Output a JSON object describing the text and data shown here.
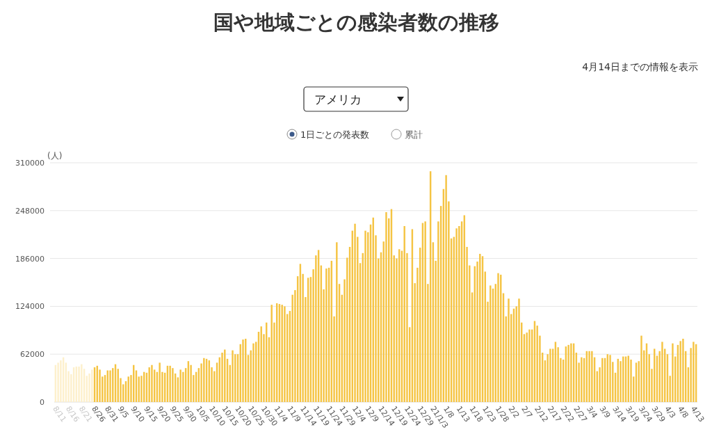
{
  "chart_data": {
    "type": "bar",
    "title": "国や地域ごとの感染者数の推移",
    "subtitle": "アメリカ",
    "ylabel": "(人)",
    "annotations": [
      "4月14日までの情報を表示",
      "1日ごとの発表数",
      "累計"
    ],
    "categories": [
      "8/11",
      null,
      null,
      null,
      null,
      "8/16",
      null,
      null,
      null,
      null,
      "8/21",
      null,
      null,
      null,
      null,
      "8/26",
      null,
      null,
      null,
      null,
      "8/31",
      null,
      null,
      null,
      null,
      "9/5",
      null,
      null,
      null,
      null,
      "9/10",
      null,
      null,
      null,
      null,
      "9/15",
      null,
      null,
      null,
      null,
      "9/20",
      null,
      null,
      null,
      null,
      "9/25",
      null,
      null,
      null,
      null,
      "9/30",
      null,
      null,
      null,
      null,
      "10/5",
      null,
      null,
      null,
      null,
      "10/10",
      null,
      null,
      null,
      null,
      "10/15",
      null,
      null,
      null,
      null,
      "10/20",
      null,
      null,
      null,
      null,
      "10/25",
      null,
      null,
      null,
      null,
      "10/30",
      null,
      null,
      null,
      null,
      "11/4",
      null,
      null,
      null,
      null,
      "11/9",
      null,
      null,
      null,
      null,
      "11/14",
      null,
      null,
      null,
      null,
      "11/19",
      null,
      null,
      null,
      null,
      "11/24",
      null,
      null,
      null,
      null,
      "11/29",
      null,
      null,
      null,
      null,
      "12/4",
      null,
      null,
      null,
      null,
      "12/9",
      null,
      null,
      null,
      null,
      "12/14",
      null,
      null,
      null,
      null,
      "12/19",
      null,
      null,
      null,
      null,
      "12/24",
      null,
      null,
      null,
      null,
      "12/29",
      null,
      null,
      null,
      null,
      "21/1/3",
      null,
      null,
      null,
      null,
      "1/8",
      null,
      null,
      null,
      null,
      "1/13",
      null,
      null,
      null,
      null,
      "1/18",
      null,
      null,
      null,
      null,
      "1/23",
      null,
      null,
      null,
      null,
      "1/28",
      null,
      null,
      null,
      null,
      "2/2",
      null,
      null,
      null,
      null,
      "2/7",
      null,
      null,
      null,
      null,
      "2/12",
      null,
      null,
      null,
      null,
      "2/17",
      null,
      null,
      null,
      null,
      "2/22",
      null,
      null,
      null,
      null,
      "2/27",
      null,
      null,
      null,
      null,
      "3/4",
      null,
      null,
      null,
      null,
      "3/9",
      null,
      null,
      null,
      null,
      "3/14",
      null,
      null,
      null,
      null,
      "3/19",
      null,
      null,
      null,
      null,
      "3/24",
      null,
      null,
      null,
      null,
      "3/29",
      null,
      null,
      null,
      null,
      "4/3",
      null,
      null,
      null,
      null,
      "4/8",
      null,
      null,
      null,
      null,
      "4/13",
      null
    ],
    "values": [
      48000,
      51000,
      54000,
      58000,
      51000,
      40000,
      36000,
      45000,
      46000,
      46000,
      49000,
      43000,
      34000,
      37000,
      42000,
      45000,
      47000,
      42000,
      33000,
      35000,
      41000,
      41000,
      44000,
      49000,
      43000,
      31000,
      23000,
      27000,
      33000,
      35000,
      48000,
      41000,
      33000,
      34000,
      39000,
      38000,
      45000,
      48000,
      42000,
      39000,
      51000,
      39000,
      38000,
      47000,
      47000,
      44000,
      37000,
      32000,
      42000,
      39000,
      44000,
      53000,
      48000,
      35000,
      39000,
      44000,
      50000,
      57000,
      56000,
      54000,
      45000,
      40000,
      51000,
      58000,
      64000,
      68000,
      56000,
      48000,
      67000,
      62000,
      62000,
      75000,
      81000,
      82000,
      61000,
      67000,
      76000,
      78000,
      91000,
      98000,
      88000,
      103000,
      84000,
      126000,
      103000,
      128000,
      127000,
      126000,
      124000,
      114000,
      118000,
      139000,
      145000,
      163000,
      179000,
      166000,
      136000,
      161000,
      162000,
      172000,
      190000,
      197000,
      177000,
      146000,
      173000,
      174000,
      183000,
      111000,
      207000,
      153000,
      139000,
      159000,
      187000,
      201000,
      222000,
      231000,
      214000,
      180000,
      193000,
      222000,
      220000,
      230000,
      239000,
      216000,
      186000,
      194000,
      208000,
      246000,
      238000,
      250000,
      190000,
      186000,
      198000,
      196000,
      228000,
      193000,
      97000,
      224000,
      154000,
      174000,
      200000,
      232000,
      234000,
      153000,
      299000,
      207000,
      183000,
      234000,
      254000,
      276000,
      294000,
      260000,
      212000,
      214000,
      225000,
      228000,
      234000,
      242000,
      201000,
      177000,
      142000,
      176000,
      182000,
      192000,
      189000,
      169000,
      130000,
      151000,
      147000,
      153000,
      167000,
      165000,
      141000,
      111000,
      134000,
      114000,
      121000,
      124000,
      134000,
      103000,
      88000,
      90000,
      94000,
      94000,
      105000,
      99000,
      86000,
      64000,
      54000,
      62000,
      69000,
      69000,
      78000,
      71000,
      57000,
      55000,
      72000,
      74000,
      76000,
      76000,
      64000,
      51000,
      58000,
      57000,
      66000,
      66000,
      66000,
      58000,
      40000,
      45000,
      57000,
      57000,
      62000,
      61000,
      52000,
      38000,
      56000,
      53000,
      59000,
      59000,
      60000,
      55000,
      33000,
      51000,
      53000,
      86000,
      67000,
      76000,
      62000,
      43000,
      69000,
      60000,
      66000,
      78000,
      69000,
      62000,
      34000,
      76000,
      59000,
      74000,
      79000,
      82000,
      66000,
      45000,
      70000,
      78000,
      75000
    ],
    "colors": [
      "#fdf0cc",
      "#fdf0cc",
      "#fdf0cc",
      "#fdf0cc",
      "#fdf0cc",
      "#fdf0cc",
      "#fdf0cc",
      "#fdf0cc",
      "#fdf0cc",
      "#fdf0cc",
      "#fdf0cc",
      "#fdf0cc",
      "#fdf0cc",
      "#fdf0cc",
      "#fdf0cc",
      "#f5c443",
      "#f5c443",
      "#f5c443",
      "#f5c443",
      "#f5c443",
      "#f5c443",
      "#f5c443",
      "#f5c443",
      "#f5c443",
      "#f5c443",
      "#f5c443",
      "#f5c443",
      "#f5c443",
      "#f5c443",
      "#f5c443",
      "#f5c443",
      "#f5c443",
      "#f5c443",
      "#f5c443",
      "#f5c443",
      "#f5c443",
      "#f5c443",
      "#f5c443",
      "#f5c443",
      "#f5c443",
      "#f5c443",
      "#f5c443",
      "#f5c443",
      "#f5c443",
      "#f5c443",
      "#f5c443",
      "#f5c443",
      "#f5c443",
      "#f5c443",
      "#f5c443",
      "#f5c443",
      "#f5c443",
      "#f5c443",
      "#f5c443",
      "#f5c443",
      "#f5c443",
      "#f5c443",
      "#f5c443",
      "#f5c443",
      "#f5c443",
      "#f5c443",
      "#f5c443",
      "#f5c443",
      "#f5c443",
      "#f5c443",
      "#f5c443",
      "#f5c443",
      "#f5c443",
      "#f5c443",
      "#f5c443",
      "#f5c443",
      "#f5c443",
      "#f5c443",
      "#f5c443",
      "#f5c443",
      "#f5c443",
      "#f5c443",
      "#f5c443",
      "#f5c443",
      "#f5c443",
      "#f5c443",
      "#f5c443",
      "#f5c443",
      "#f5c443",
      "#f5c443",
      "#f5c443",
      "#f5c443",
      "#f5c443",
      "#f5c443",
      "#f5c443",
      "#f5c443",
      "#f5c443",
      "#f5c443",
      "#f5c443",
      "#f5c443",
      "#f5c443",
      "#f5c443",
      "#f5c443",
      "#f5c443",
      "#f5c443",
      "#f5c443",
      "#f5c443",
      "#f5c443",
      "#f5c443",
      "#f5c443",
      "#f5c443",
      "#f5c443",
      "#f5c443",
      "#f5c443",
      "#f5c443",
      "#f5c443",
      "#f5c443",
      "#f5c443",
      "#f5c443",
      "#f5c443",
      "#f5c443",
      "#f5c443",
      "#f5c443",
      "#f5c443",
      "#f5c443",
      "#f5c443",
      "#f5c443",
      "#f5c443",
      "#f5c443",
      "#f5c443",
      "#f5c443",
      "#f5c443",
      "#f5c443",
      "#f5c443",
      "#f5c443",
      "#f5c443",
      "#f5c443",
      "#f5c443",
      "#f5c443",
      "#f5c443",
      "#f5c443",
      "#f5c443",
      "#f5c443",
      "#f5c443",
      "#f5c443",
      "#f5c443",
      "#f5c443",
      "#f5c443",
      "#f5c443",
      "#f5c443",
      "#f5c443",
      "#f5c443",
      "#f5c443",
      "#f5c443",
      "#f5c443",
      "#f5c443",
      "#f5c443",
      "#f5c443",
      "#f5c443",
      "#f5c443",
      "#f5c443",
      "#f5c443",
      "#f5c443",
      "#f5c443",
      "#f5c443",
      "#f5c443",
      "#f5c443",
      "#f5c443",
      "#f5c443",
      "#f5c443",
      "#f5c443",
      "#f5c443",
      "#f5c443",
      "#f5c443",
      "#f5c443",
      "#f5c443",
      "#f5c443",
      "#f5c443",
      "#f5c443",
      "#f5c443",
      "#f5c443",
      "#f5c443",
      "#f5c443",
      "#f5c443",
      "#f5c443",
      "#f5c443",
      "#f5c443",
      "#f5c443",
      "#f5c443",
      "#f5c443",
      "#f5c443",
      "#f5c443",
      "#f5c443",
      "#f5c443",
      "#f5c443",
      "#f5c443",
      "#f5c443",
      "#f5c443",
      "#f5c443",
      "#f5c443",
      "#f5c443",
      "#f5c443",
      "#f5c443",
      "#f5c443",
      "#f5c443",
      "#f5c443",
      "#f5c443",
      "#f5c443",
      "#f5c443",
      "#f5c443",
      "#f5c443",
      "#f5c443",
      "#f5c443",
      "#f5c443",
      "#f5c443",
      "#f5c443",
      "#f5c443",
      "#f5c443",
      "#f5c443",
      "#f5c443",
      "#f5c443",
      "#f5c443",
      "#f5c443",
      "#f5c443",
      "#f5c443",
      "#f5c443",
      "#f5c443",
      "#f5c443",
      "#f5c443",
      "#f5c443",
      "#f5c443",
      "#f5c443",
      "#f5c443",
      "#f5c443",
      "#f5c443",
      "#f5c443",
      "#f5c443",
      "#f5c443",
      "#f5c443",
      "#f5c443",
      "#f5c443",
      "#f5c443",
      "#f5c443",
      "#f5c443",
      "#f5c443",
      "#f5c443",
      "#f5c443",
      "#f5c443",
      "#f5c443",
      "#f5c443",
      "#f5c443",
      "#f5c443"
    ],
    "ylim": [
      0,
      310000
    ],
    "yticks": [
      0,
      62000,
      124000,
      186000,
      248000,
      310000
    ],
    "grid": "y"
  }
}
